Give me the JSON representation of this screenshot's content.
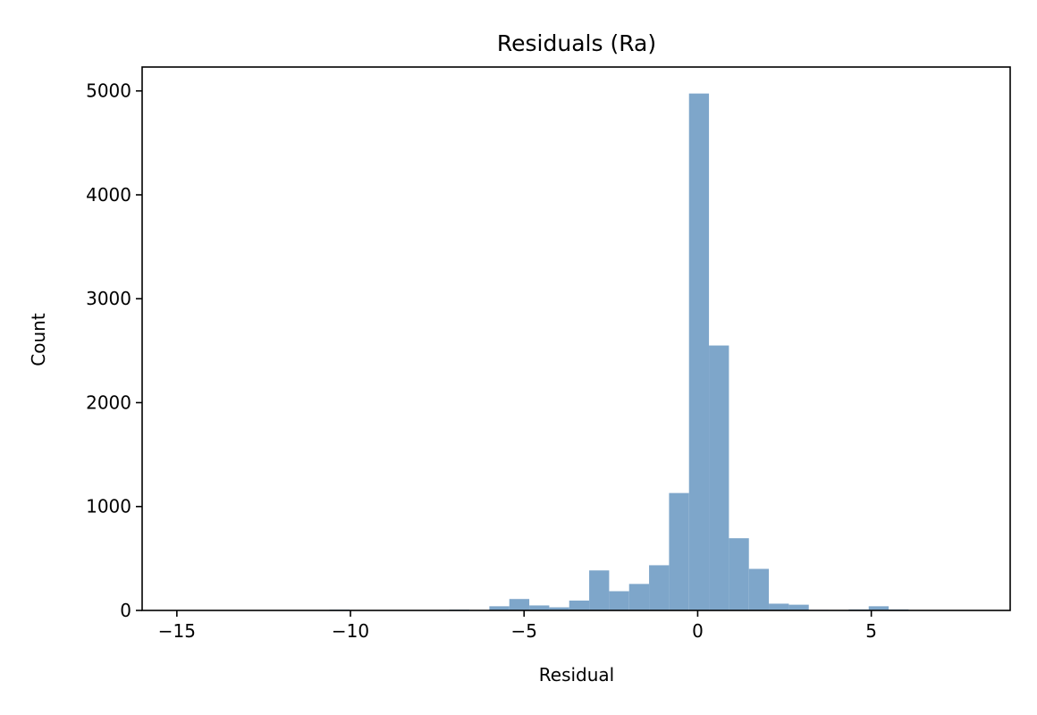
{
  "chart_data": {
    "type": "bar",
    "title": "Residuals (Ra)",
    "xlabel": "Residual",
    "ylabel": "Count",
    "xlim": [
      -16,
      9
    ],
    "ylim": [
      0,
      5230
    ],
    "grid": false,
    "bar_color": "#7ea6ca",
    "bin_width": 0.575,
    "x_ticks": [
      {
        "value": -15,
        "label": "−15"
      },
      {
        "value": -10,
        "label": "−10"
      },
      {
        "value": -5,
        "label": "−5"
      },
      {
        "value": 0,
        "label": "0"
      },
      {
        "value": 5,
        "label": "5"
      }
    ],
    "y_ticks": [
      {
        "value": 0,
        "label": "0"
      },
      {
        "value": 1000,
        "label": "1000"
      },
      {
        "value": 2000,
        "label": "2000"
      },
      {
        "value": 3000,
        "label": "3000"
      },
      {
        "value": 4000,
        "label": "4000"
      },
      {
        "value": 5000,
        "label": "5000"
      }
    ],
    "bins": [
      {
        "x0": -15.2,
        "x1": -14.625,
        "count": 2
      },
      {
        "x0": -10.6,
        "x1": -10.025,
        "count": 8
      },
      {
        "x0": -7.15,
        "x1": -6.575,
        "count": 8
      },
      {
        "x0": -6.0,
        "x1": -5.425,
        "count": 40
      },
      {
        "x0": -5.425,
        "x1": -4.85,
        "count": 110
      },
      {
        "x0": -4.85,
        "x1": -4.275,
        "count": 48
      },
      {
        "x0": -4.275,
        "x1": -3.7,
        "count": 30
      },
      {
        "x0": -3.7,
        "x1": -3.125,
        "count": 95
      },
      {
        "x0": -3.125,
        "x1": -2.55,
        "count": 385
      },
      {
        "x0": -2.55,
        "x1": -1.975,
        "count": 185
      },
      {
        "x0": -1.975,
        "x1": -1.4,
        "count": 255
      },
      {
        "x0": -1.4,
        "x1": -0.825,
        "count": 435
      },
      {
        "x0": -0.825,
        "x1": -0.25,
        "count": 1130
      },
      {
        "x0": -0.25,
        "x1": 0.325,
        "count": 4975
      },
      {
        "x0": 0.325,
        "x1": 0.9,
        "count": 2550
      },
      {
        "x0": 0.9,
        "x1": 1.475,
        "count": 695
      },
      {
        "x0": 1.475,
        "x1": 2.05,
        "count": 400
      },
      {
        "x0": 2.05,
        "x1": 2.625,
        "count": 65
      },
      {
        "x0": 2.625,
        "x1": 3.2,
        "count": 55
      },
      {
        "x0": 3.2,
        "x1": 3.775,
        "count": 5
      },
      {
        "x0": 4.35,
        "x1": 4.925,
        "count": 10
      },
      {
        "x0": 4.925,
        "x1": 5.5,
        "count": 40
      },
      {
        "x0": 5.5,
        "x1": 6.075,
        "count": 10
      }
    ]
  }
}
